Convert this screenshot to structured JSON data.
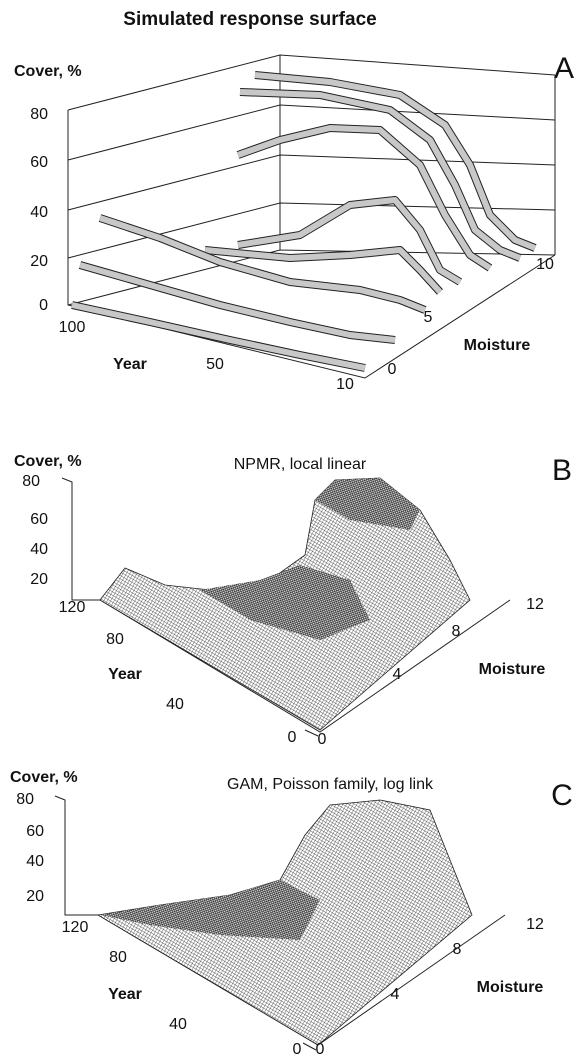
{
  "panels": [
    {
      "letter": "A",
      "title": "Simulated response surface",
      "z_label": "Cover, %",
      "z_ticks": [
        "80",
        "60",
        "40",
        "20",
        "0"
      ],
      "year_label": "Year",
      "year_ticks": [
        "100",
        "50",
        "10"
      ],
      "moisture_label": "Moisture",
      "moisture_ticks": [
        "0",
        "5",
        "10"
      ]
    },
    {
      "letter": "B",
      "title": "NPMR, local linear",
      "z_label": "Cover, %",
      "z_ticks": [
        "80",
        "60",
        "40",
        "20"
      ],
      "year_label": "Year",
      "year_ticks": [
        "120",
        "80",
        "40",
        "0"
      ],
      "moisture_label": "Moisture",
      "moisture_ticks": [
        "0",
        "4",
        "8",
        "12"
      ]
    },
    {
      "letter": "C",
      "title": "GAM, Poisson family, log link",
      "z_label": "Cover, %",
      "z_ticks": [
        "80",
        "60",
        "40",
        "20"
      ],
      "year_label": "Year",
      "year_ticks": [
        "120",
        "80",
        "40",
        "0"
      ],
      "moisture_label": "Moisture",
      "moisture_ticks": [
        "0",
        "4",
        "8",
        "12"
      ]
    }
  ]
}
